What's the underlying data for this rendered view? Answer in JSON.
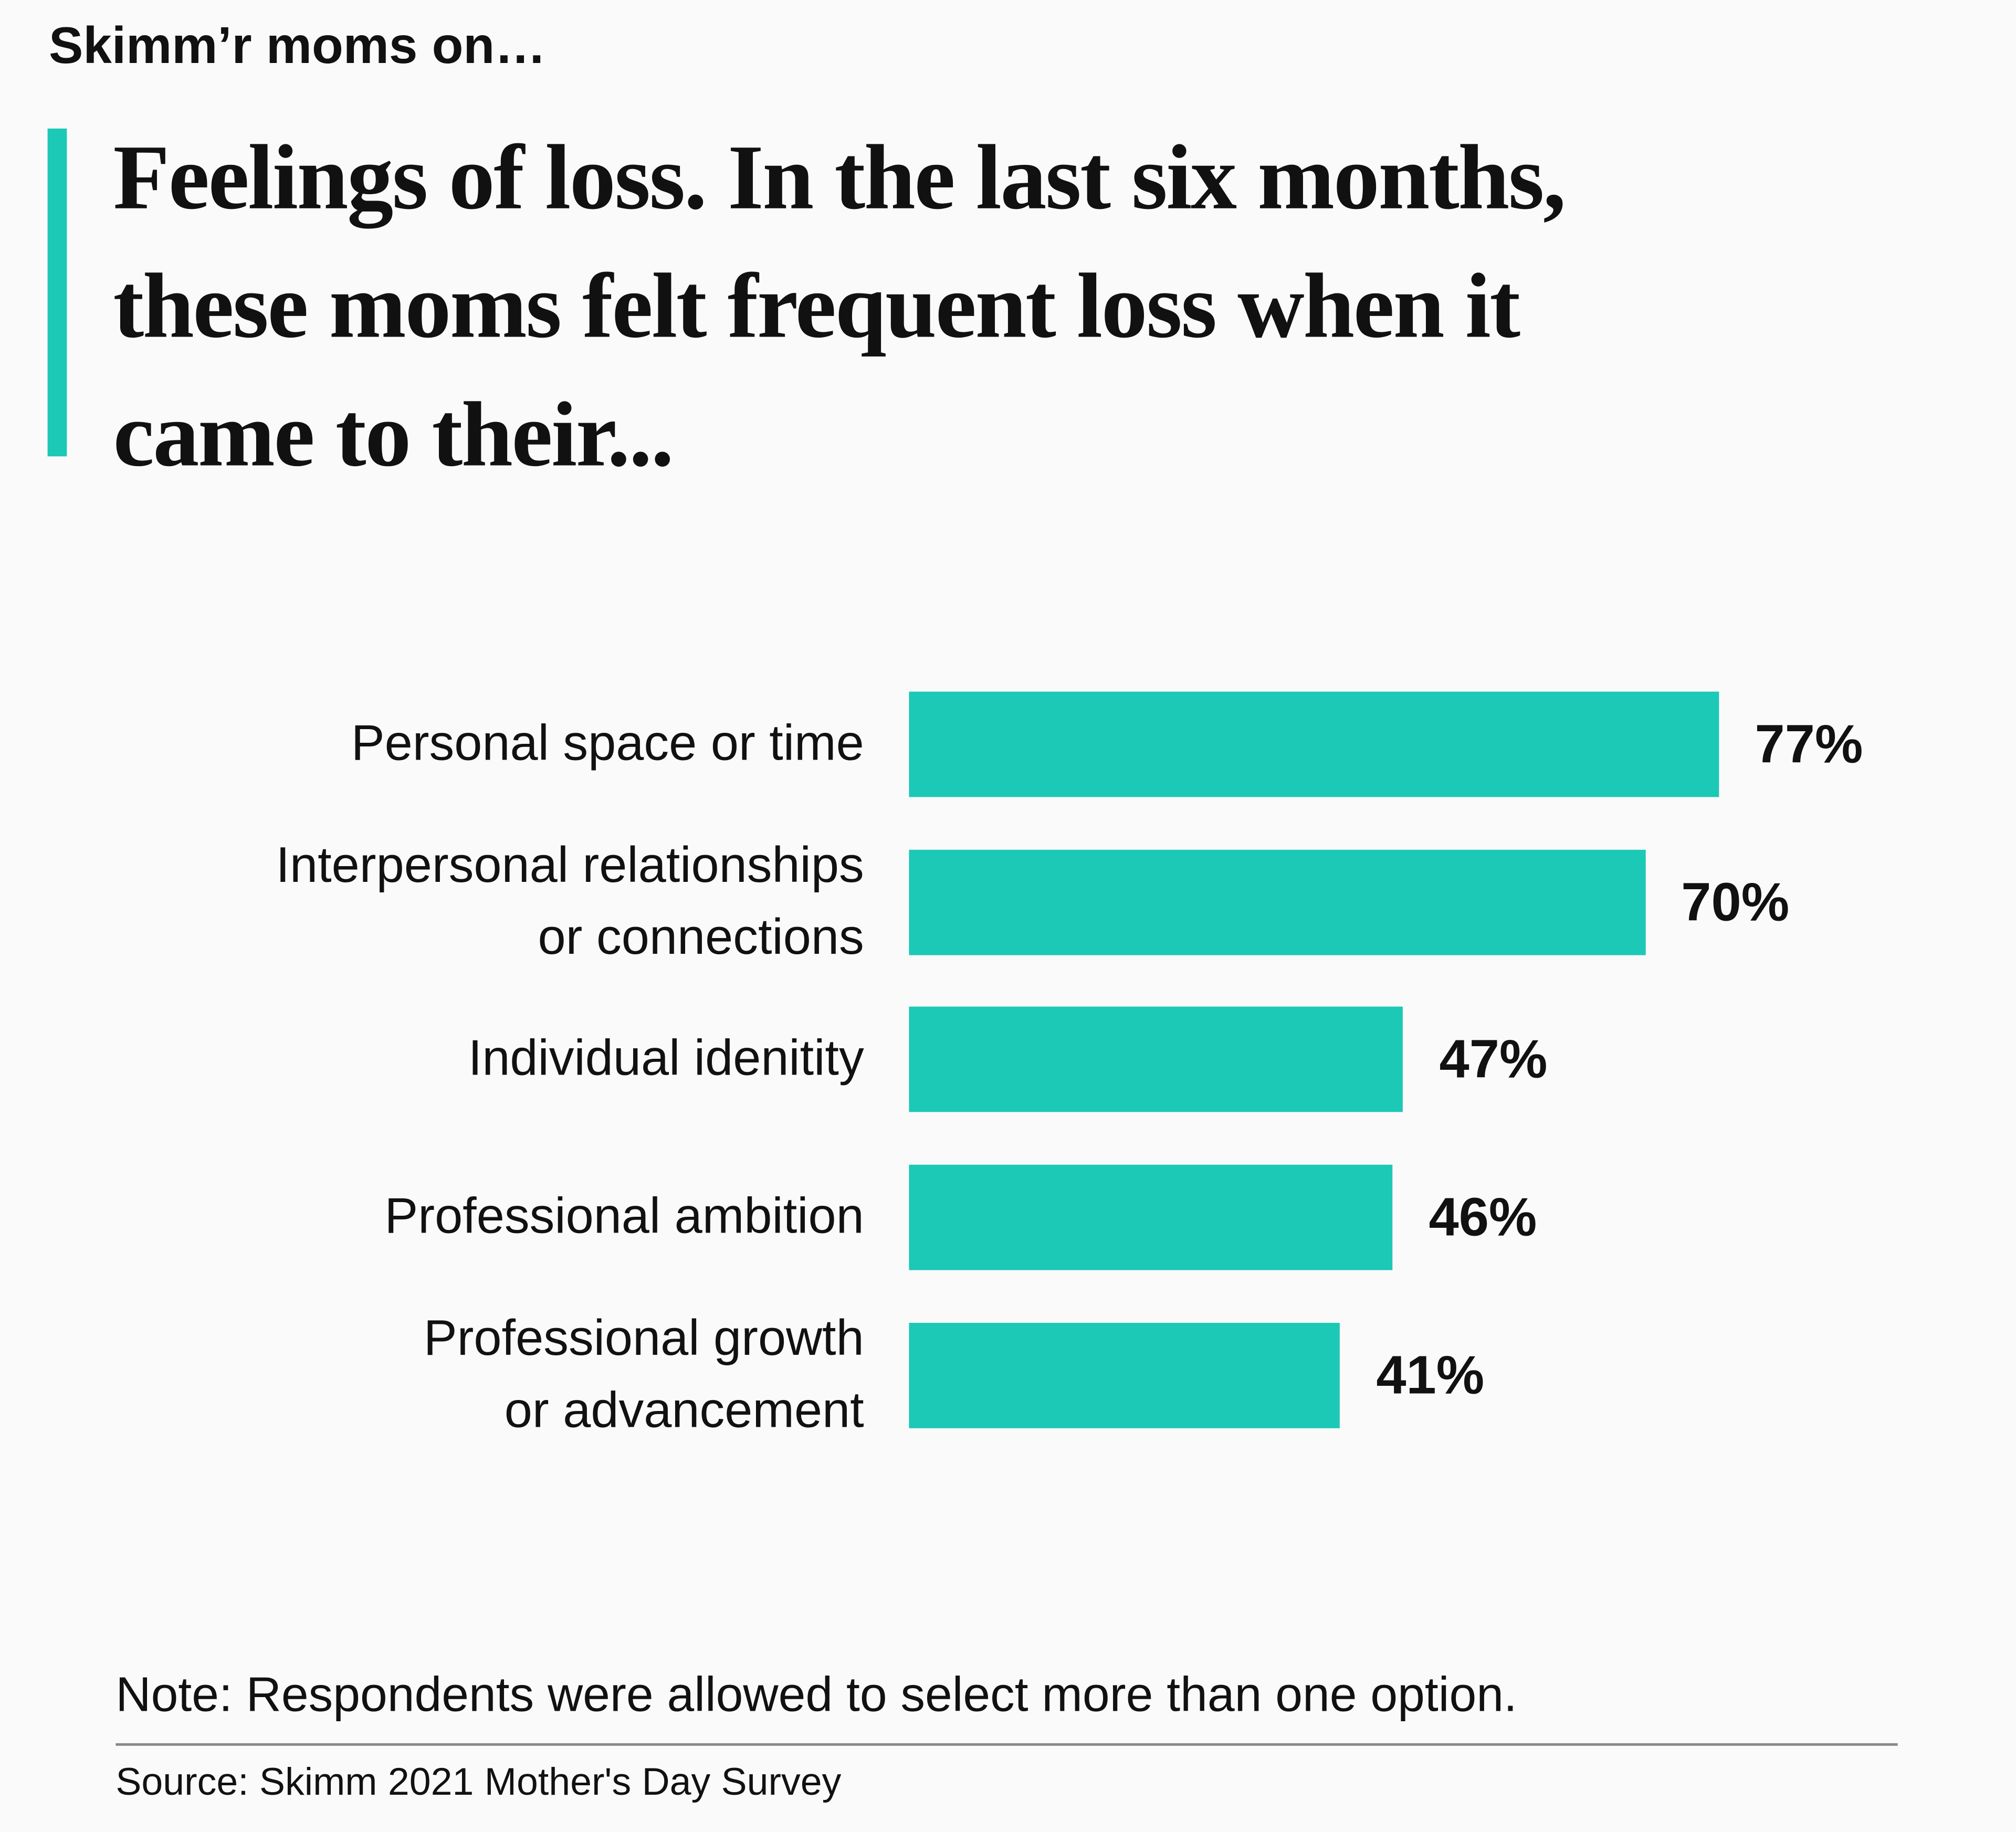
{
  "chart_data": {
    "type": "bar",
    "orientation": "horizontal",
    "kicker": "Skimm’r moms on…",
    "title": "Feelings of loss. In the last six months,\nthese moms felt frequent loss when it\ncame to their...",
    "categories": [
      "Personal space or time",
      "Interpersonal relationships\nor connections",
      "Individual idenitity",
      "Professional ambition",
      "Professional growth\nor advancement"
    ],
    "values": [
      77,
      70,
      47,
      46,
      41
    ],
    "value_labels": [
      "77%",
      "70%",
      "47%",
      "46%",
      "41%"
    ],
    "color": "#1cc8b6",
    "note": "Note: Respondents were allowed to select more than one option.",
    "source": "Source: Skimm 2021 Mother's Day Survey"
  }
}
